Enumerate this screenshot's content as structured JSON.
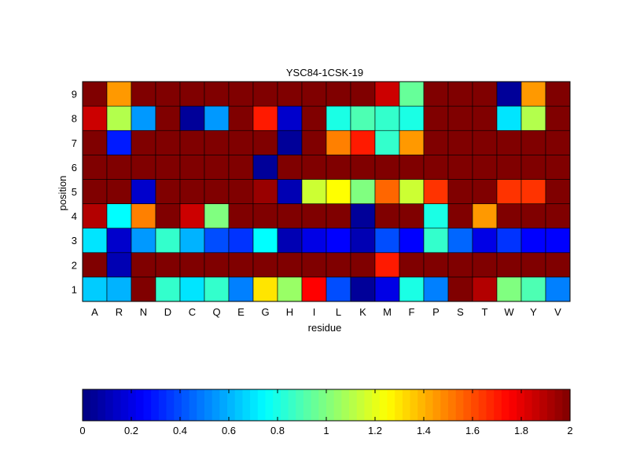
{
  "chart_data": {
    "type": "heatmap",
    "title": "YSC84-1CSK-19",
    "xlabel": "residue",
    "ylabel": "position",
    "x_categories": [
      "A",
      "R",
      "N",
      "D",
      "C",
      "Q",
      "E",
      "G",
      "H",
      "I",
      "L",
      "K",
      "M",
      "F",
      "P",
      "S",
      "T",
      "W",
      "Y",
      "V"
    ],
    "y_categories": [
      "1",
      "2",
      "3",
      "4",
      "5",
      "6",
      "7",
      "8",
      "9"
    ],
    "values": [
      [
        0.65,
        0.6,
        2.0,
        0.85,
        0.7,
        0.85,
        0.5,
        1.3,
        1.05,
        1.75,
        0.4,
        0.05,
        0.2,
        0.8,
        0.5,
        2.0,
        1.9,
        1.0,
        0.9,
        0.5
      ],
      [
        2.0,
        0.1,
        2.0,
        2.0,
        2.0,
        2.0,
        2.0,
        2.0,
        2.0,
        2.0,
        2.0,
        2.0,
        1.7,
        2.0,
        2.0,
        2.0,
        2.0,
        2.0,
        2.0,
        2.0
      ],
      [
        0.7,
        0.15,
        0.55,
        0.85,
        0.6,
        0.4,
        0.35,
        0.75,
        0.1,
        0.2,
        0.25,
        0.1,
        0.4,
        0.25,
        0.85,
        0.45,
        0.2,
        0.35,
        0.25,
        0.25
      ],
      [
        1.9,
        0.75,
        1.5,
        2.0,
        1.85,
        1.0,
        2.0,
        2.0,
        2.0,
        2.0,
        2.0,
        0.05,
        2.0,
        2.0,
        0.8,
        2.0,
        1.45,
        2.0,
        2.0,
        2.0
      ],
      [
        2.0,
        2.0,
        0.15,
        2.0,
        2.0,
        2.0,
        2.0,
        1.95,
        0.1,
        1.15,
        1.25,
        1.0,
        1.55,
        1.15,
        1.65,
        2.0,
        2.0,
        1.65,
        1.65,
        2.0
      ],
      [
        2.0,
        2.0,
        2.0,
        2.0,
        2.0,
        2.0,
        2.0,
        0.05,
        2.0,
        2.0,
        2.0,
        2.0,
        2.0,
        2.0,
        2.0,
        2.0,
        2.0,
        2.0,
        2.0,
        2.0
      ],
      [
        2.0,
        0.3,
        2.0,
        2.0,
        2.0,
        2.0,
        2.0,
        2.0,
        0.05,
        2.0,
        1.5,
        1.7,
        0.85,
        1.45,
        2.0,
        2.0,
        2.0,
        2.0,
        2.0,
        2.0
      ],
      [
        1.85,
        1.1,
        0.55,
        2.0,
        0.05,
        0.55,
        2.0,
        1.7,
        0.15,
        2.0,
        0.8,
        0.9,
        0.85,
        0.8,
        2.0,
        2.0,
        2.0,
        0.7,
        1.1,
        2.0
      ],
      [
        2.0,
        1.45,
        2.0,
        2.0,
        2.0,
        2.0,
        2.0,
        2.0,
        2.0,
        2.0,
        2.0,
        2.0,
        1.85,
        0.95,
        2.0,
        2.0,
        2.0,
        0.05,
        1.45,
        2.0
      ]
    ],
    "colorbar": {
      "colormap": "jet",
      "range": [
        0,
        2
      ],
      "ticks": [
        "0",
        "0.2",
        "0.4",
        "0.6",
        "0.8",
        "1",
        "1.2",
        "1.4",
        "1.6",
        "1.8",
        "2"
      ]
    },
    "grid": true
  }
}
